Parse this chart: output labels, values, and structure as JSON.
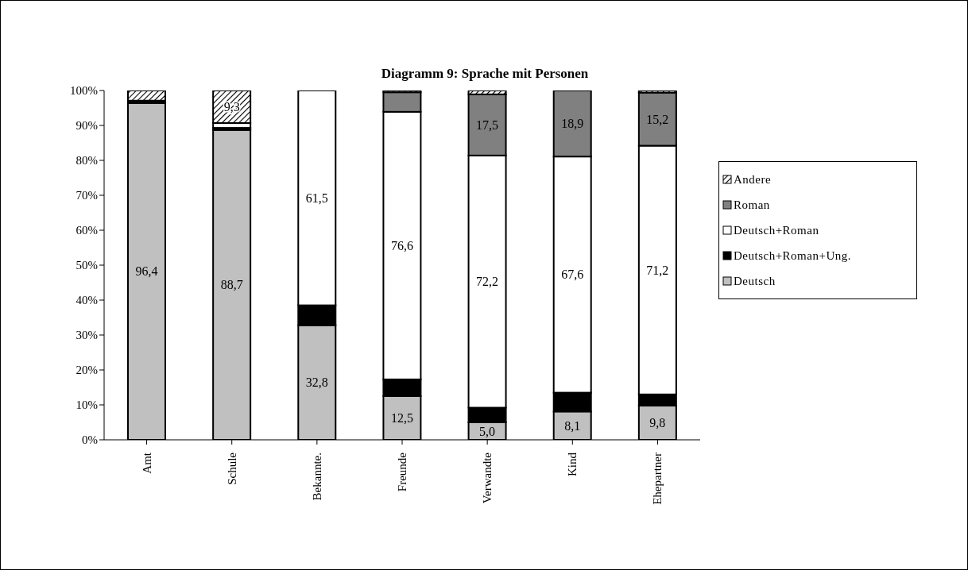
{
  "chart_data": {
    "type": "bar",
    "stacked": true,
    "title": "Diagramm 9: Sprache mit Personen",
    "categories": [
      "Amt",
      "Schule",
      "Bekannte.",
      "Freunde",
      "Verwandte",
      "Kind",
      "Ehepartner"
    ],
    "series": [
      {
        "name": "Deutsch",
        "color": "#c0c0c0",
        "values": [
          96.4,
          88.7,
          32.8,
          12.5,
          5.0,
          8.1,
          9.8
        ],
        "value_labels": [
          "96,4",
          "88,7",
          "32,8",
          "12,5",
          "5,0",
          "8,1",
          "9,8"
        ]
      },
      {
        "name": "Deutsch+Roman+Ung.",
        "color": "#000000",
        "values": [
          0.7,
          0.6,
          5.7,
          4.8,
          4.2,
          5.4,
          3.2
        ]
      },
      {
        "name": "Deutsch+Roman",
        "color": "#ffffff",
        "values": [
          0,
          1.4,
          61.5,
          76.6,
          72.2,
          67.6,
          71.2
        ],
        "value_labels": [
          null,
          null,
          "61,5",
          "76,6",
          "72,2",
          "67,6",
          "71,2"
        ]
      },
      {
        "name": "Roman",
        "color": "#808080",
        "values": [
          0,
          0,
          0,
          5.6,
          17.5,
          18.9,
          15.2
        ],
        "value_labels": [
          null,
          null,
          null,
          null,
          "17,5",
          "18,9",
          "15,2"
        ]
      },
      {
        "name": "Andere",
        "color": "#000000",
        "values": [
          2.9,
          9.3,
          0,
          0.5,
          1.1,
          0,
          0.6
        ],
        "value_labels": [
          null,
          "9,3",
          null,
          null,
          null,
          null,
          null
        ]
      }
    ],
    "ylim": [
      0,
      100
    ],
    "yticks": [
      {
        "value": 0,
        "label": "0%"
      },
      {
        "value": 10,
        "label": "10%"
      },
      {
        "value": 20,
        "label": "20%"
      },
      {
        "value": 30,
        "label": "30%"
      },
      {
        "value": 40,
        "label": "40%"
      },
      {
        "value": 50,
        "label": "50%"
      },
      {
        "value": 60,
        "label": "60%"
      },
      {
        "value": 70,
        "label": "70%"
      },
      {
        "value": 80,
        "label": "80%"
      },
      {
        "value": 90,
        "label": "90%"
      },
      {
        "value": 100,
        "label": "100%"
      }
    ],
    "legend": "right",
    "grid": false
  }
}
